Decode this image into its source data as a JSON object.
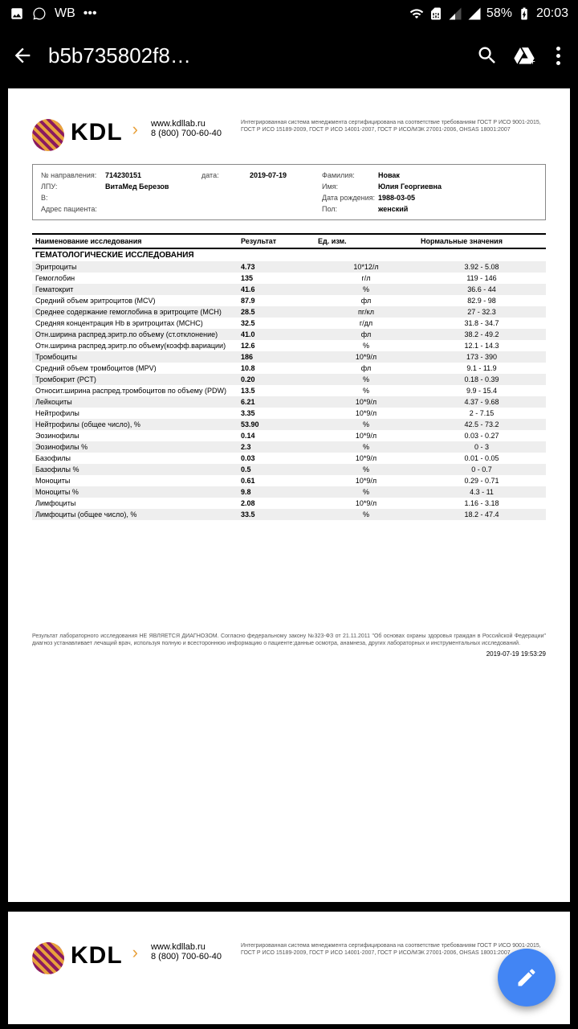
{
  "status": {
    "wb": "WB",
    "battery": "58%",
    "time": "20:03"
  },
  "appbar": {
    "title": "b5b735802f8…"
  },
  "brand": {
    "name": "KDL",
    "url": "www.kdllab.ru",
    "phone": "8 (800) 700-60-40",
    "cert": "Интегрированная система менеджмента сертифицирована на соответствие требованиям ГОСТ Р ИСО 9001-2015, ГОСТ Р ИСО 15189-2009, ГОСТ Р ИСО 14001-2007, ГОСТ Р ИСО/МЭК 27001-2006, OHSAS 18001:2007"
  },
  "patient": {
    "ref_label": "№ направления:",
    "ref": "714230151",
    "date_label": "дата:",
    "date": "2019-07-19",
    "surname_label": "Фамилия:",
    "surname": "Новак",
    "lpu_label": "ЛПУ:",
    "lpu": "ВитаМед Березов",
    "name_label": "Имя:",
    "name": "Юлия Георгиевна",
    "b_label": "В:",
    "dob_label": "Дата рождения:",
    "dob": "1988-03-05",
    "addr_label": "Адрес пациента:",
    "sex_label": "Пол:",
    "sex": "женский"
  },
  "table": {
    "headers": {
      "name": "Наименование исследования",
      "result": "Результат",
      "unit": "Ед. изм.",
      "norm": "Нормальные значения"
    },
    "section": "ГЕМАТОЛОГИЧЕСКИЕ ИССЛЕДОВАНИЯ",
    "rows": [
      {
        "n": "Эритроциты",
        "r": "4.73",
        "u": "10*12/л",
        "m": "3.92 - 5.08",
        "s": 1
      },
      {
        "n": "Гемоглобин",
        "r": "135",
        "u": "г/л",
        "m": "119 - 146",
        "s": 0
      },
      {
        "n": "Гематокрит",
        "r": "41.6",
        "u": "%",
        "m": "36.6 - 44",
        "s": 1
      },
      {
        "n": "Средний объем эритроцитов (MCV)",
        "r": "87.9",
        "u": "фл",
        "m": "82.9 - 98",
        "s": 0
      },
      {
        "n": "Среднее содержание гемоглобина в эритроците (MCH)",
        "r": "28.5",
        "u": "пг/кл",
        "m": "27 - 32.3",
        "s": 1
      },
      {
        "n": "Средняя концентрация Hb в эритроцитах (MCHC)",
        "r": "32.5",
        "u": "г/дл",
        "m": "31.8 - 34.7",
        "s": 0
      },
      {
        "n": "Отн.ширина распред.эритр.по объему (ст.отклонение)",
        "r": "41.0",
        "u": "фл",
        "m": "38.2 - 49.2",
        "s": 1
      },
      {
        "n": "Отн.ширина распред.эритр.по объему(коэфф.вариации)",
        "r": "12.6",
        "u": "%",
        "m": "12.1 - 14.3",
        "s": 0
      },
      {
        "n": "Тромбоциты",
        "r": "186",
        "u": "10*9/л",
        "m": "173 - 390",
        "s": 1
      },
      {
        "n": "Средний объем тромбоцитов (MPV)",
        "r": "10.8",
        "u": "фл",
        "m": "9.1 - 11.9",
        "s": 0
      },
      {
        "n": "Тромбокрит (PCT)",
        "r": "0.20",
        "u": "%",
        "m": "0.18 - 0.39",
        "s": 1
      },
      {
        "n": "Относит.ширина распред.тромбоцитов по объему (PDW)",
        "r": "13.5",
        "u": "%",
        "m": "9.9 - 15.4",
        "s": 0
      },
      {
        "n": "Лейкоциты",
        "r": "6.21",
        "u": "10*9/л",
        "m": "4.37 - 9.68",
        "s": 1
      },
      {
        "n": "Нейтрофилы",
        "r": "3.35",
        "u": "10*9/л",
        "m": "2 - 7.15",
        "s": 0
      },
      {
        "n": "Нейтрофилы (общее число), %",
        "r": "53.90",
        "u": "%",
        "m": "42.5 - 73.2",
        "s": 1
      },
      {
        "n": "Эозинофилы",
        "r": "0.14",
        "u": "10*9/л",
        "m": "0.03 - 0.27",
        "s": 0
      },
      {
        "n": "Эозинофилы %",
        "r": "2.3",
        "u": "%",
        "m": "0 - 3",
        "s": 1
      },
      {
        "n": "Базофилы",
        "r": "0.03",
        "u": "10*9/л",
        "m": "0.01 - 0.05",
        "s": 0
      },
      {
        "n": "Базофилы %",
        "r": "0.5",
        "u": "%",
        "m": "0 - 0.7",
        "s": 1
      },
      {
        "n": "Моноциты",
        "r": "0.61",
        "u": "10*9/л",
        "m": "0.29 - 0.71",
        "s": 0
      },
      {
        "n": "Моноциты %",
        "r": "9.8",
        "u": "%",
        "m": "4.3 - 11",
        "s": 1
      },
      {
        "n": "Лимфоциты",
        "r": "2.08",
        "u": "10*9/л",
        "m": "1.16 - 3.18",
        "s": 0
      },
      {
        "n": "Лимфоциты (общее число), %",
        "r": "33.5",
        "u": "%",
        "m": "18.2 - 47.4",
        "s": 1
      }
    ]
  },
  "disclaimer": "Результат лабораторного исследования НЕ ЯВЛЯЕТСЯ ДИАГНОЗОМ. Согласно федеральному закону №323-ФЗ от 21.11.2011 \"Об основах охраны здоровья граждан в Российской Федерации\" диагноз устанавливает лечащий врач, используя полную и всестороннюю информацию о пациенте:данные осмотра, анамнеза, других лабораторных и инструментальных исследований.",
  "timestamp": "2019-07-19 19:53:29"
}
